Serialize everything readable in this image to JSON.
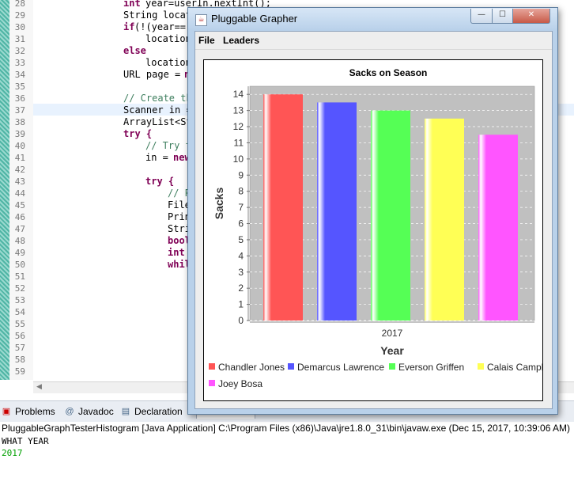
{
  "editor": {
    "line_numbers": [
      "28",
      "29",
      "30",
      "31",
      "32",
      "33",
      "34",
      "35",
      "36",
      "37",
      "38",
      "39",
      "40",
      "41",
      "42",
      "43",
      "44",
      "45",
      "46",
      "47",
      "48",
      "49",
      "50",
      "51",
      "52",
      "53",
      "54",
      "55",
      "56",
      "57",
      "58",
      "59"
    ],
    "code": {
      "l28": "year=userIn.nextInt();",
      "l29a": "String",
      "l29b": "locat",
      "l30": "(!(year==",
      "l31": "location",
      "l32": "else",
      "l33": "location",
      "l34": "URL page = ",
      "l34b": "n",
      "l36": "// Create th",
      "l37": "Scanner in = ",
      "l38": "ArrayList<St",
      "l39": "try {",
      "l40": "// Try t",
      "l41": "in = ",
      "l41b": "new",
      "l43": "try {",
      "l44": "// P",
      "l45": "File",
      "l46": "Prin",
      "l47": "Stri",
      "l48": "bool",
      "l49": "int",
      "l50": "whil"
    },
    "keywords": {
      "int": "int",
      "if": "if"
    }
  },
  "window": {
    "title": "Pluggable Grapher",
    "icon": "java-icon",
    "controls": {
      "minimize": "—",
      "maximize": "☐",
      "close": "✕"
    },
    "menu": [
      "File",
      "Leaders"
    ]
  },
  "chart_data": {
    "type": "bar",
    "title": "Sacks on Season",
    "xlabel": "Year",
    "ylabel": "Sacks",
    "categories": [
      "2017"
    ],
    "ylim": [
      0,
      14.5
    ],
    "yticks": [
      0,
      1,
      2,
      3,
      4,
      5,
      6,
      7,
      8,
      9,
      10,
      11,
      12,
      13,
      14
    ],
    "grid": true,
    "legend_position": "bottom",
    "series": [
      {
        "name": "Chandler Jones",
        "values": [
          14.0
        ],
        "color": "#ff5555"
      },
      {
        "name": "Demarcus Lawrence",
        "values": [
          13.5
        ],
        "color": "#5555ff"
      },
      {
        "name": "Everson Griffen",
        "values": [
          13.0
        ],
        "color": "#55ff55"
      },
      {
        "name": "Calais Campbell",
        "values": [
          12.5
        ],
        "color": "#ffff55"
      },
      {
        "name": "Joey Bosa",
        "values": [
          11.5
        ],
        "color": "#ff55ff"
      }
    ]
  },
  "bottom_tabs": [
    {
      "label": "Problems",
      "icon": "problems-icon"
    },
    {
      "label": "Javadoc",
      "icon": "at-icon"
    },
    {
      "label": "Declaration",
      "icon": "declaration-icon"
    },
    {
      "label": "Console",
      "icon": "console-icon"
    }
  ],
  "console": {
    "description": "PluggableGraphTesterHistogram [Java Application] C:\\Program Files (x86)\\Java\\jre1.8.0_31\\bin\\javaw.exe (Dec 15, 2017, 10:39:06 AM)",
    "output": [
      {
        "text": "WHAT YEAR",
        "color": "#000000"
      },
      {
        "text": "2017",
        "color": "#00a000"
      }
    ]
  }
}
